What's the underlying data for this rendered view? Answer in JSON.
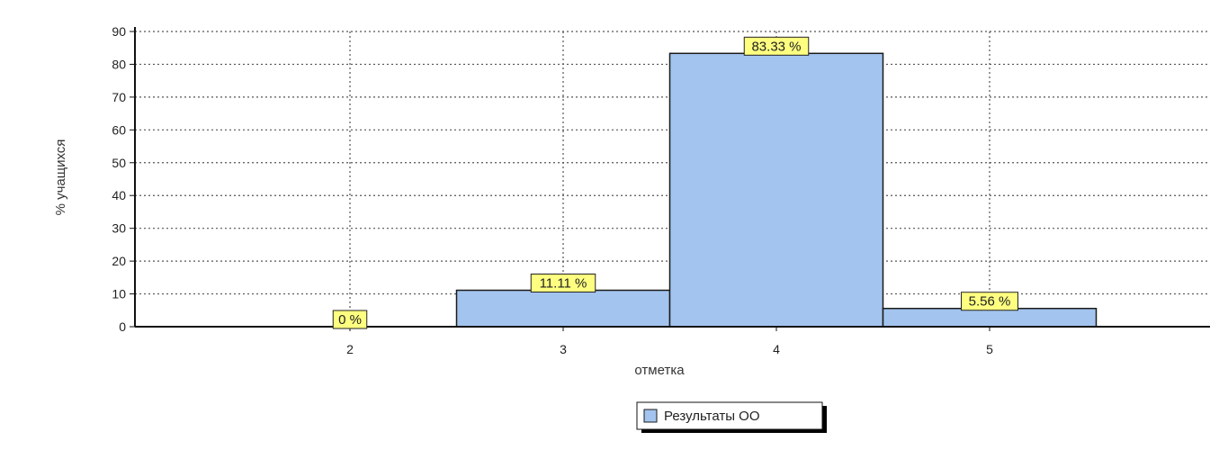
{
  "chart_data": {
    "type": "bar",
    "categories": [
      "2",
      "3",
      "4",
      "5"
    ],
    "values": [
      0,
      11.11,
      83.33,
      5.56
    ],
    "data_labels": [
      "0 %",
      "11.11 %",
      "83.33 %",
      "5.56 %"
    ],
    "xlabel": "отметка",
    "ylabel": "% учащихся",
    "ylim": [
      0,
      90
    ],
    "yticks": [
      0,
      10,
      20,
      30,
      40,
      50,
      60,
      70,
      80,
      90
    ],
    "grid": true,
    "legend": {
      "position": "bottom-center",
      "entries": [
        "Результаты ОО"
      ]
    },
    "colors": {
      "bar_fill": "#a3c4ee",
      "bar_stroke": "#1a1a1a",
      "label_fill": "#fefe80",
      "grid": "#555555",
      "axis": "#111111"
    }
  }
}
